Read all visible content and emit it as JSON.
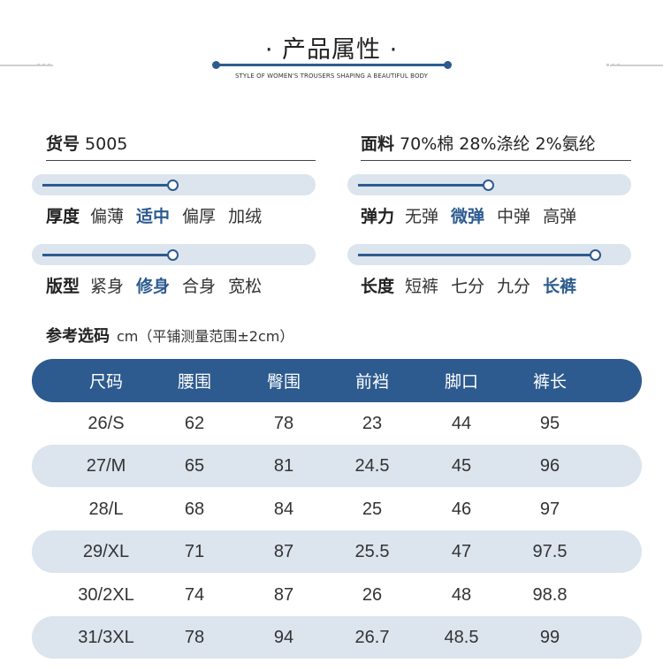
{
  "header": {
    "title": "· 产品属性 ·",
    "subtitle": "STYLE OF WOMEN'S TROUSERS SHAPING A BEAUTIFUL BODY"
  },
  "item_no": {
    "label": "货号",
    "value": "5005"
  },
  "fabric": {
    "label": "面料",
    "value": "70%棉 28%涤纶 2%氨纶"
  },
  "attributes": [
    {
      "label": "厚度",
      "options": [
        "偏薄",
        "适中",
        "偏厚",
        "加绒"
      ],
      "selected": "适中",
      "level_index": 1
    },
    {
      "label": "弹力",
      "options": [
        "无弹",
        "微弹",
        "中弹",
        "高弹"
      ],
      "selected": "微弹",
      "level_index": 1
    },
    {
      "label": "版型",
      "options": [
        "紧身",
        "修身",
        "合身",
        "宽松"
      ],
      "selected": "修身",
      "level_index": 1
    },
    {
      "label": "长度",
      "options": [
        "短裤",
        "七分",
        "九分",
        "长裤"
      ],
      "selected": "长裤",
      "level_index": 3
    }
  ],
  "size_ref": {
    "title": "参考选码",
    "note": "cm（平铺测量范围±2cm）"
  },
  "table": {
    "headers": [
      "尺码",
      "腰围",
      "臀围",
      "前裆",
      "脚口",
      "裤长"
    ],
    "rows": [
      [
        "26/S",
        "62",
        "78",
        "23",
        "44",
        "95"
      ],
      [
        "27/M",
        "65",
        "81",
        "24.5",
        "45",
        "96"
      ],
      [
        "28/L",
        "68",
        "84",
        "25",
        "46",
        "97"
      ],
      [
        "29/XL",
        "71",
        "87",
        "25.5",
        "47",
        "97.5"
      ],
      [
        "30/2XL",
        "74",
        "87",
        "26",
        "48",
        "98.8"
      ],
      [
        "31/3XL",
        "78",
        "94",
        "26.7",
        "48.5",
        "99"
      ]
    ]
  },
  "colors": {
    "accent": "#2d5b8f",
    "stripe": "#dce4ee"
  }
}
